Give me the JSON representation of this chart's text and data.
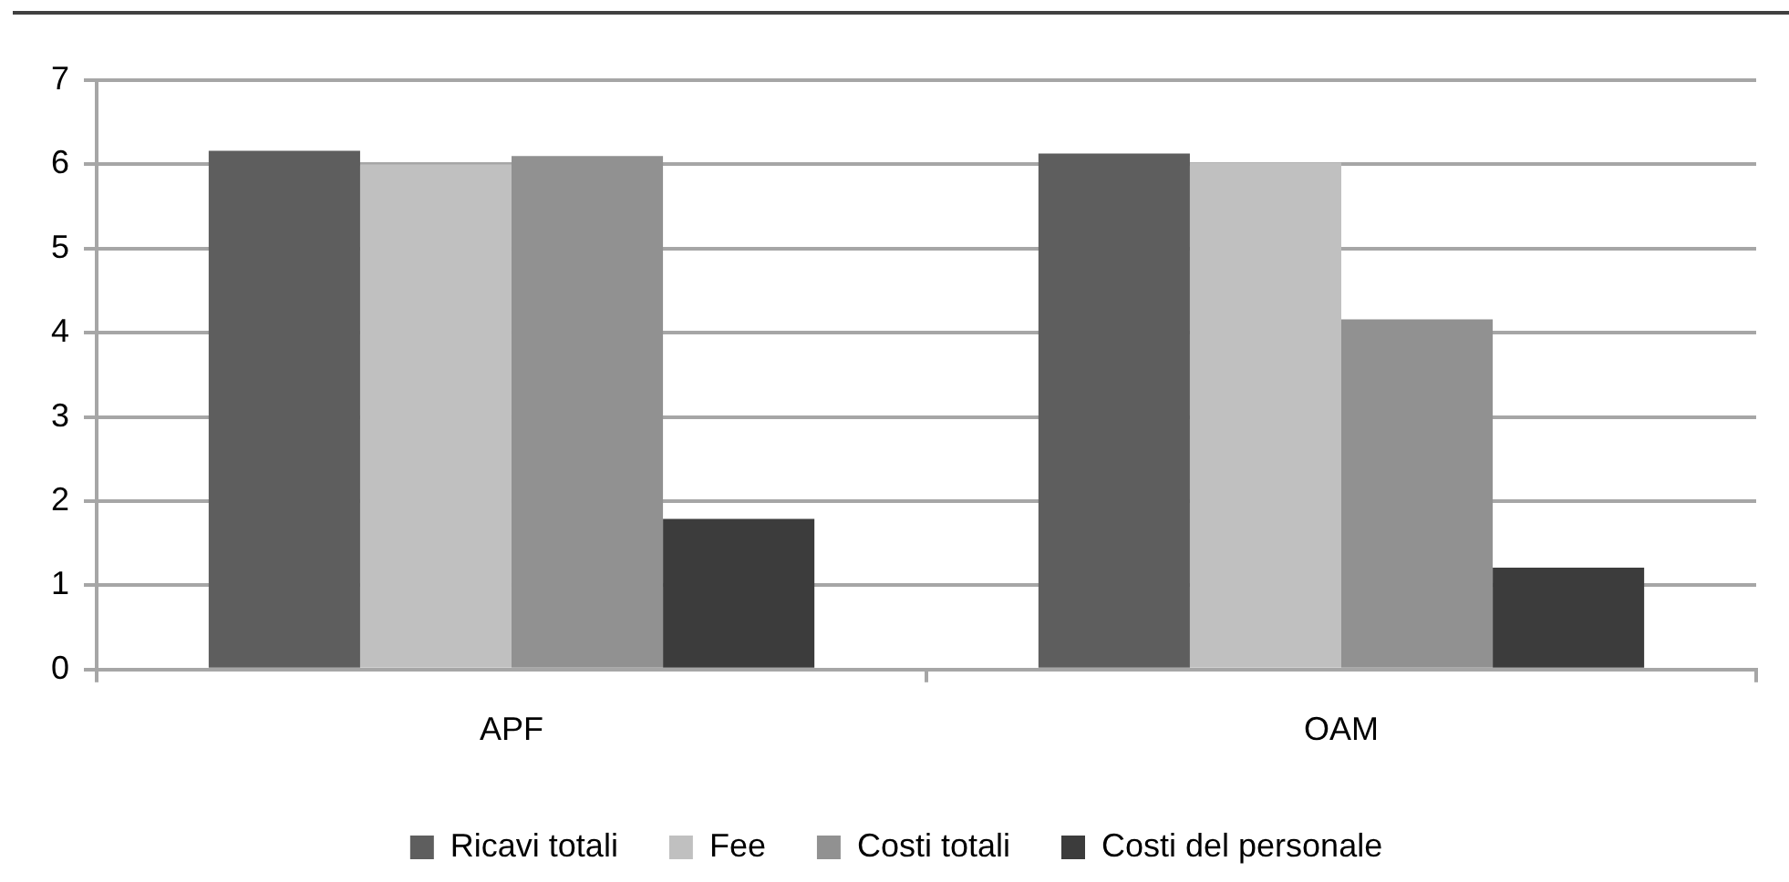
{
  "chart_data": {
    "type": "bar",
    "categories": [
      "APF",
      "OAM"
    ],
    "series": [
      {
        "name": "Ricavi totali",
        "color": "#5e5e5e",
        "values": [
          6.16,
          6.13
        ]
      },
      {
        "name": "Fee",
        "color": "#c0c0c0",
        "values": [
          6.0,
          6.02
        ]
      },
      {
        "name": "Costi totali",
        "color": "#919191",
        "values": [
          6.1,
          4.16
        ]
      },
      {
        "name": "Costi del personale",
        "color": "#3c3c3c",
        "values": [
          1.79,
          1.21
        ]
      }
    ],
    "ylim": [
      0,
      7
    ],
    "yticks": [
      0,
      1,
      2,
      3,
      4,
      5,
      6,
      7
    ],
    "grid": "y",
    "legend": "bottom"
  }
}
